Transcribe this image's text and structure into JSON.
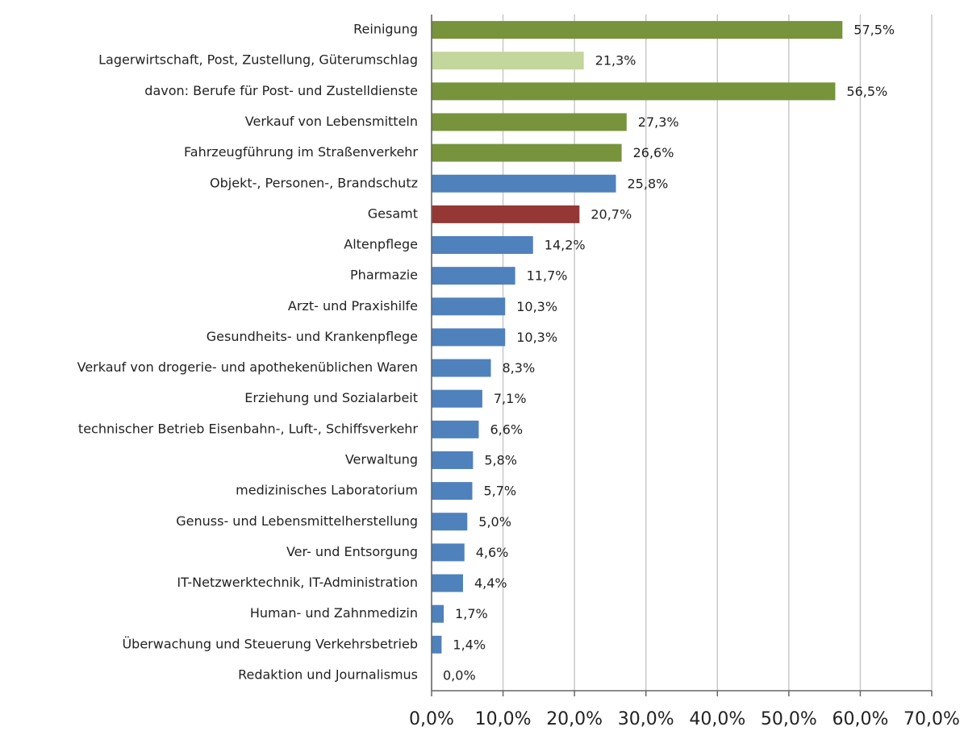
{
  "chart_data": {
    "type": "bar",
    "categories": [
      "Reinigung",
      "Lagerwirtschaft, Post, Zustellung, Güterumschlag",
      "davon:  Berufe für Post- und Zustelldienste",
      "Verkauf von Lebensmitteln",
      "Fahrzeugführung im Straßenverkehr",
      "Objekt-, Personen-, Brandschutz",
      "Gesamt",
      "Altenpflege",
      "Pharmazie",
      "Arzt- und Praxishilfe",
      "Gesundheits- und Krankenpflege",
      "Verkauf von drogerie- und apothekenüblichen Waren",
      "Erziehung und Sozialarbeit",
      "technischer Betrieb Eisenbahn-, Luft-, Schiffsverkehr",
      "Verwaltung",
      "medizinisches Laboratorium",
      "Genuss- und Lebensmittelherstellung",
      "Ver- und Entsorgung",
      "IT-Netzwerktechnik, IT-Administration",
      "Human- und Zahnmedizin",
      "Überwachung und Steuerung Verkehrsbetrieb",
      "Redaktion und Journalismus"
    ],
    "values": [
      57.5,
      21.3,
      56.5,
      27.3,
      26.6,
      25.8,
      20.7,
      14.2,
      11.7,
      10.3,
      10.3,
      8.3,
      7.1,
      6.6,
      5.8,
      5.7,
      5.0,
      4.6,
      4.4,
      1.7,
      1.4,
      0.0
    ],
    "value_labels": [
      "57,5%",
      "21,3%",
      "56,5%",
      "27,3%",
      "26,6%",
      "25,8%",
      "20,7%",
      "14,2%",
      "11,7%",
      "10,3%",
      "10,3%",
      "8,3%",
      "7,1%",
      "6,6%",
      "5,8%",
      "5,7%",
      "5,0%",
      "4,6%",
      "4,4%",
      "1,7%",
      "1,4%",
      "0,0%"
    ],
    "colors": [
      "#77933c",
      "#c3d69b",
      "#77933c",
      "#77933c",
      "#77933c",
      "#4f81bd",
      "#953735",
      "#4f81bd",
      "#4f81bd",
      "#4f81bd",
      "#4f81bd",
      "#4f81bd",
      "#4f81bd",
      "#4f81bd",
      "#4f81bd",
      "#4f81bd",
      "#4f81bd",
      "#4f81bd",
      "#4f81bd",
      "#4f81bd",
      "#4f81bd",
      "#4f81bd"
    ],
    "xlim": [
      0,
      70
    ],
    "xticks": [
      {
        "value": 0,
        "label": "0,0%"
      },
      {
        "value": 10,
        "label": "10,0%"
      },
      {
        "value": 20,
        "label": "20,0%"
      },
      {
        "value": 30,
        "label": "30,0%"
      },
      {
        "value": 40,
        "label": "40,0%"
      },
      {
        "value": 50,
        "label": "50,0%"
      },
      {
        "value": 60,
        "label": "60,0%"
      },
      {
        "value": 70,
        "label": "70,0%"
      }
    ],
    "grid": true
  }
}
